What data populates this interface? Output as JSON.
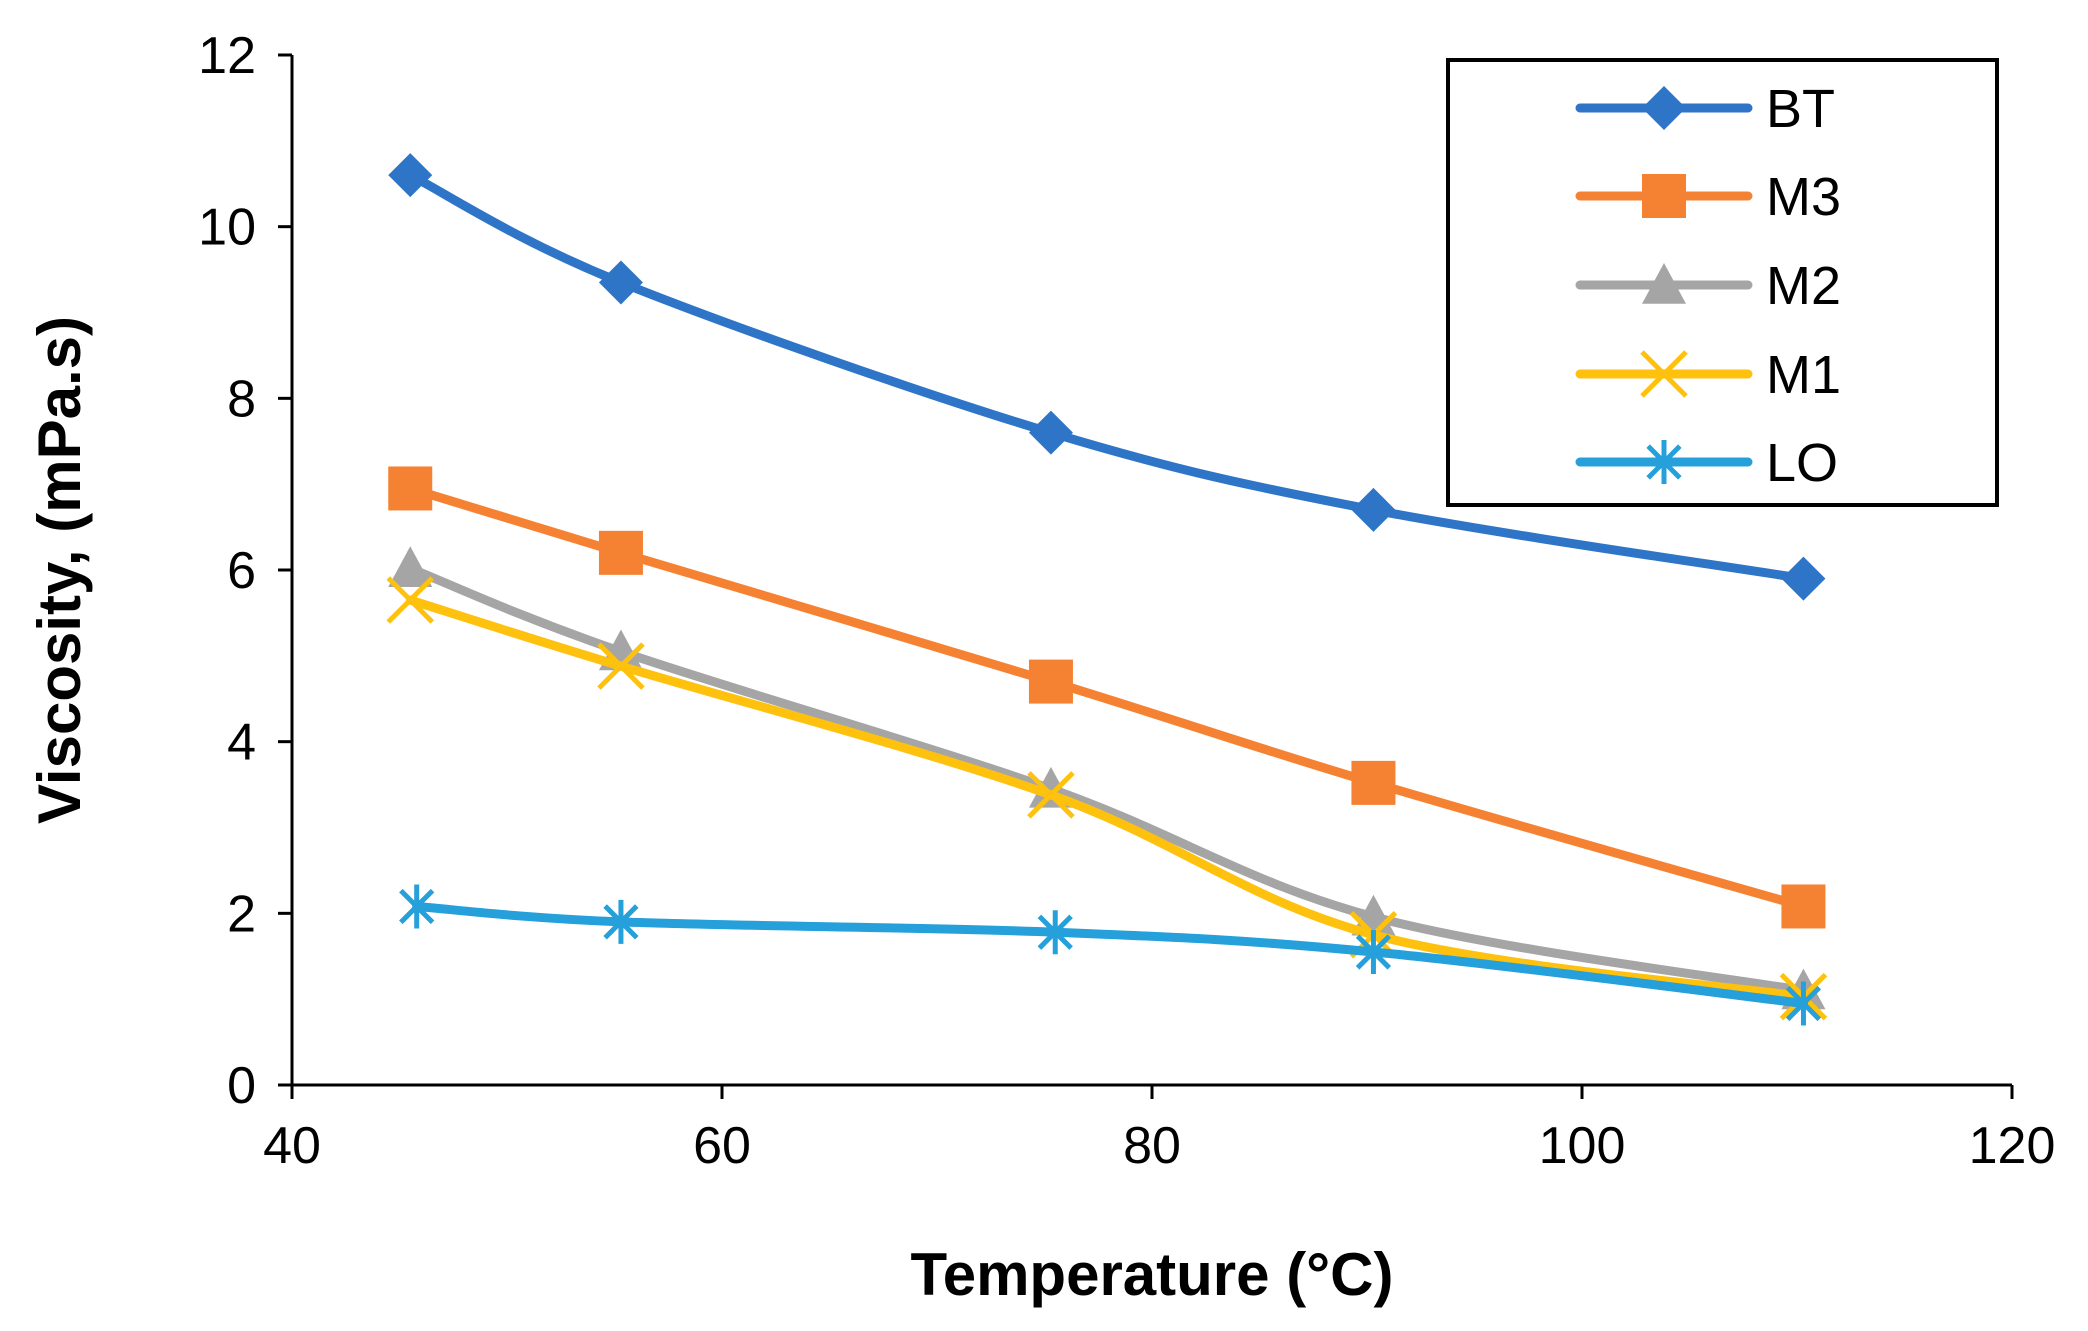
{
  "chart_data": {
    "type": "line",
    "xlabel": "Temperature (°C)",
    "ylabel": "Viscosity, (mPa.s)",
    "xlim": [
      40,
      120
    ],
    "ylim": [
      0,
      12
    ],
    "xticks": [
      40,
      60,
      80,
      100,
      120
    ],
    "yticks": [
      0,
      2,
      4,
      6,
      8,
      10,
      12
    ],
    "grid": false,
    "smooth": true,
    "legend_position": "top-right",
    "series": [
      {
        "name": "BT",
        "color": "#2E75C7",
        "marker": "diamond",
        "x": [
          45.5,
          55.3,
          75.3,
          90.3,
          110.3
        ],
        "y": [
          10.6,
          9.35,
          7.6,
          6.7,
          5.9
        ]
      },
      {
        "name": "M3",
        "color": "#F58232",
        "marker": "square",
        "x": [
          45.5,
          55.3,
          75.3,
          90.3,
          110.3
        ],
        "y": [
          6.95,
          6.2,
          4.7,
          3.52,
          2.08
        ]
      },
      {
        "name": "M2",
        "color": "#A5A5A5",
        "marker": "triangle",
        "x": [
          45.5,
          55.3,
          75.3,
          90.3,
          110.3
        ],
        "y": [
          6.02,
          5.05,
          3.45,
          1.96,
          1.1
        ]
      },
      {
        "name": "M1",
        "color": "#FDC10E",
        "marker": "x",
        "x": [
          45.5,
          55.3,
          75.3,
          90.3,
          110.3
        ],
        "y": [
          5.65,
          4.88,
          3.38,
          1.75,
          1.03
        ]
      },
      {
        "name": "LO",
        "color": "#26A0DA",
        "marker": "asterisk",
        "x": [
          45.8,
          55.3,
          75.5,
          90.3,
          110.3
        ],
        "y": [
          2.08,
          1.9,
          1.78,
          1.55,
          0.95
        ]
      }
    ]
  }
}
